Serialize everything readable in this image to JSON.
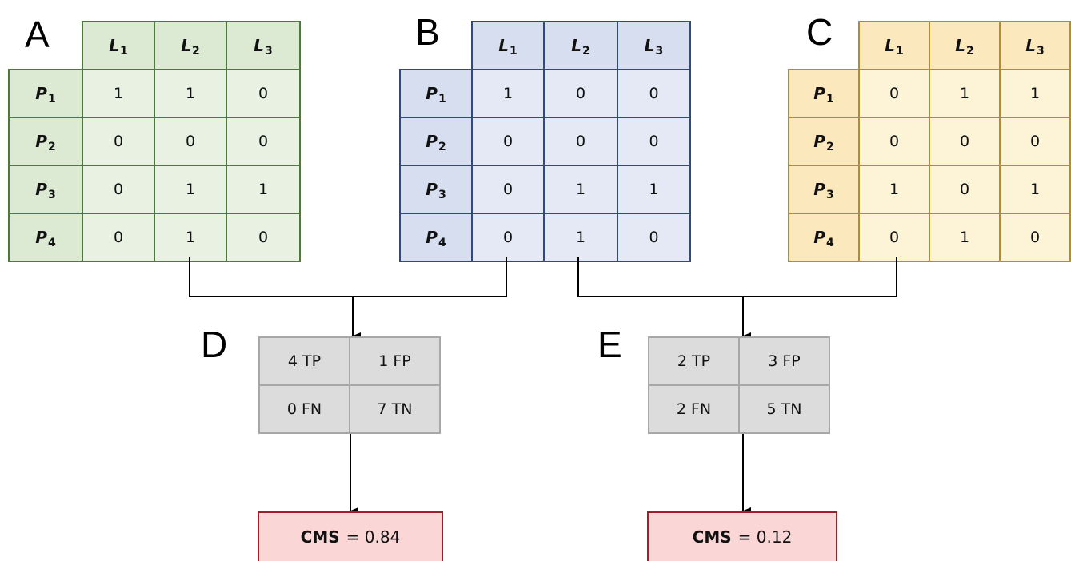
{
  "panels": {
    "A": {
      "letter": "A",
      "columns": [
        {
          "base": "L",
          "sub": "1"
        },
        {
          "base": "L",
          "sub": "2"
        },
        {
          "base": "L",
          "sub": "3"
        }
      ],
      "rows": [
        {
          "base": "P",
          "sub": "1",
          "values": [
            "1",
            "1",
            "0"
          ]
        },
        {
          "base": "P",
          "sub": "2",
          "values": [
            "0",
            "0",
            "0"
          ]
        },
        {
          "base": "P",
          "sub": "3",
          "values": [
            "0",
            "1",
            "1"
          ]
        },
        {
          "base": "P",
          "sub": "4",
          "values": [
            "0",
            "1",
            "0"
          ]
        }
      ],
      "color": "#4b7a3a"
    },
    "B": {
      "letter": "B",
      "columns": [
        {
          "base": "L",
          "sub": "1"
        },
        {
          "base": "L",
          "sub": "2"
        },
        {
          "base": "L",
          "sub": "3"
        }
      ],
      "rows": [
        {
          "base": "P",
          "sub": "1",
          "values": [
            "1",
            "0",
            "0"
          ]
        },
        {
          "base": "P",
          "sub": "2",
          "values": [
            "0",
            "0",
            "0"
          ]
        },
        {
          "base": "P",
          "sub": "3",
          "values": [
            "0",
            "1",
            "1"
          ]
        },
        {
          "base": "P",
          "sub": "4",
          "values": [
            "0",
            "1",
            "0"
          ]
        }
      ],
      "color": "#2f4a80"
    },
    "C": {
      "letter": "C",
      "columns": [
        {
          "base": "L",
          "sub": "1"
        },
        {
          "base": "L",
          "sub": "2"
        },
        {
          "base": "L",
          "sub": "3"
        }
      ],
      "rows": [
        {
          "base": "P",
          "sub": "1",
          "values": [
            "0",
            "1",
            "1"
          ]
        },
        {
          "base": "P",
          "sub": "2",
          "values": [
            "0",
            "0",
            "0"
          ]
        },
        {
          "base": "P",
          "sub": "3",
          "values": [
            "1",
            "0",
            "1"
          ]
        },
        {
          "base": "P",
          "sub": "4",
          "values": [
            "0",
            "1",
            "0"
          ]
        }
      ],
      "color": "#b48c2e"
    },
    "D": {
      "letter": "D",
      "cells": [
        [
          "4 TP",
          "1 FP"
        ],
        [
          "0 FN",
          "7 TN"
        ]
      ],
      "cms_label": "CMS",
      "cms_value": "= 0.84"
    },
    "E": {
      "letter": "E",
      "cells": [
        [
          "2 TP",
          "3 FP"
        ],
        [
          "2 FN",
          "5 TN"
        ]
      ],
      "cms_label": "CMS",
      "cms_value": "= 0.12"
    }
  }
}
